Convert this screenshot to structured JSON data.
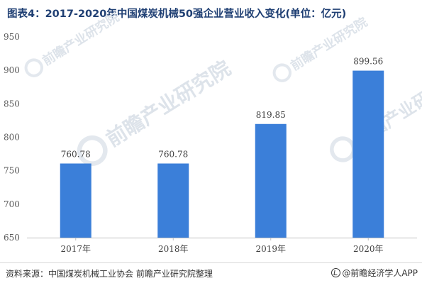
{
  "chart_data": {
    "type": "bar",
    "title": "图表4：2017-2020年中国煤炭机械50强企业营业收入变化(单位：亿元)",
    "categories": [
      "2017年",
      "2018年",
      "2019年",
      "2020年"
    ],
    "values": [
      760.78,
      760.78,
      819.85,
      899.56
    ],
    "value_labels": [
      "760.78",
      "760.78",
      "819.85",
      "899.56"
    ],
    "ylim": [
      650,
      950
    ],
    "yticks": [
      650,
      700,
      750,
      800,
      850,
      900,
      950
    ],
    "grid": false,
    "legend": "none",
    "bar_color": "#3b7fd9"
  },
  "watermark": {
    "text": "前瞻产业研究院"
  },
  "footer": {
    "source": "资料来源：中国煤炭机械工业协会 前瞻产业研究院整理",
    "brand": "@前瞻经济学人APP"
  }
}
